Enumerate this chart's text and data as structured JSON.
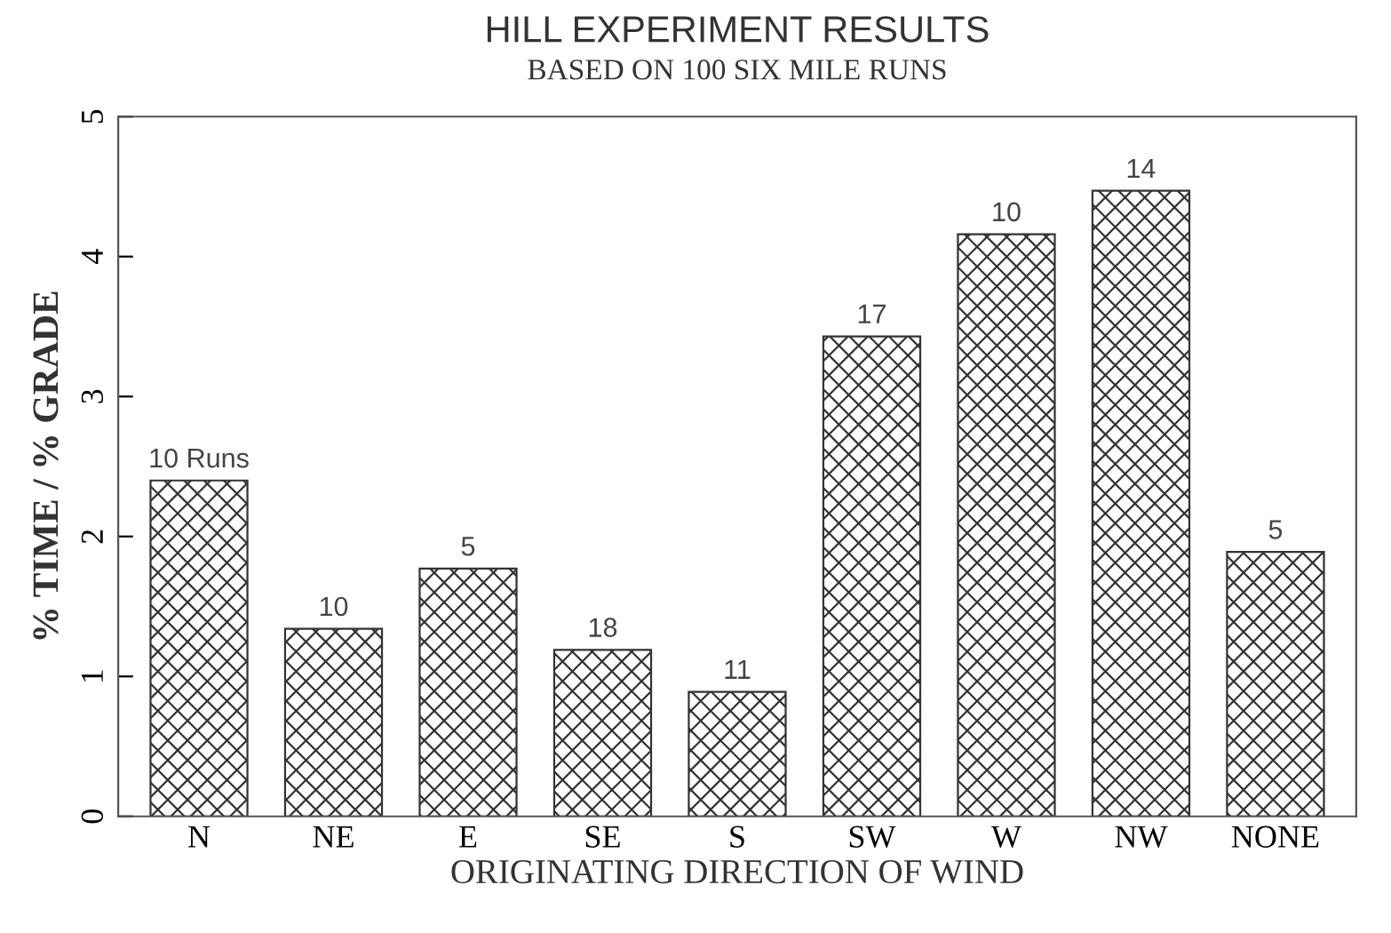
{
  "chart_data": {
    "type": "bar",
    "title": "HILL EXPERIMENT RESULTS",
    "subtitle": "BASED ON 100 SIX MILE RUNS",
    "xlabel": "ORIGINATING DIRECTION OF WIND",
    "ylabel": "% TIME / % GRADE",
    "categories": [
      "N",
      "NE",
      "E",
      "SE",
      "S",
      "SW",
      "W",
      "NW",
      "NONE"
    ],
    "values": [
      2.4,
      1.34,
      1.77,
      1.19,
      0.89,
      3.43,
      4.16,
      4.47,
      1.89
    ],
    "annotations": [
      {
        "text": "10 Runs",
        "x": "N",
        "y": 2.4
      },
      {
        "text": "10",
        "x": "NE",
        "y": 1.34
      },
      {
        "text": "5",
        "x": "E",
        "y": 1.77
      },
      {
        "text": "18",
        "x": "SE",
        "y": 1.19
      },
      {
        "text": "11",
        "x": "S",
        "y": 0.89
      },
      {
        "text": "17",
        "x": "SW",
        "y": 3.43
      },
      {
        "text": "10",
        "x": "W",
        "y": 4.16
      },
      {
        "text": "14",
        "x": "NW",
        "y": 4.47
      },
      {
        "text": "5",
        "x": "NONE",
        "y": 1.89
      }
    ],
    "color": "#333333",
    "ylim": [
      0,
      5
    ],
    "yticks": [
      0,
      1,
      2,
      3,
      4,
      5
    ],
    "grid": false,
    "legend": false
  }
}
